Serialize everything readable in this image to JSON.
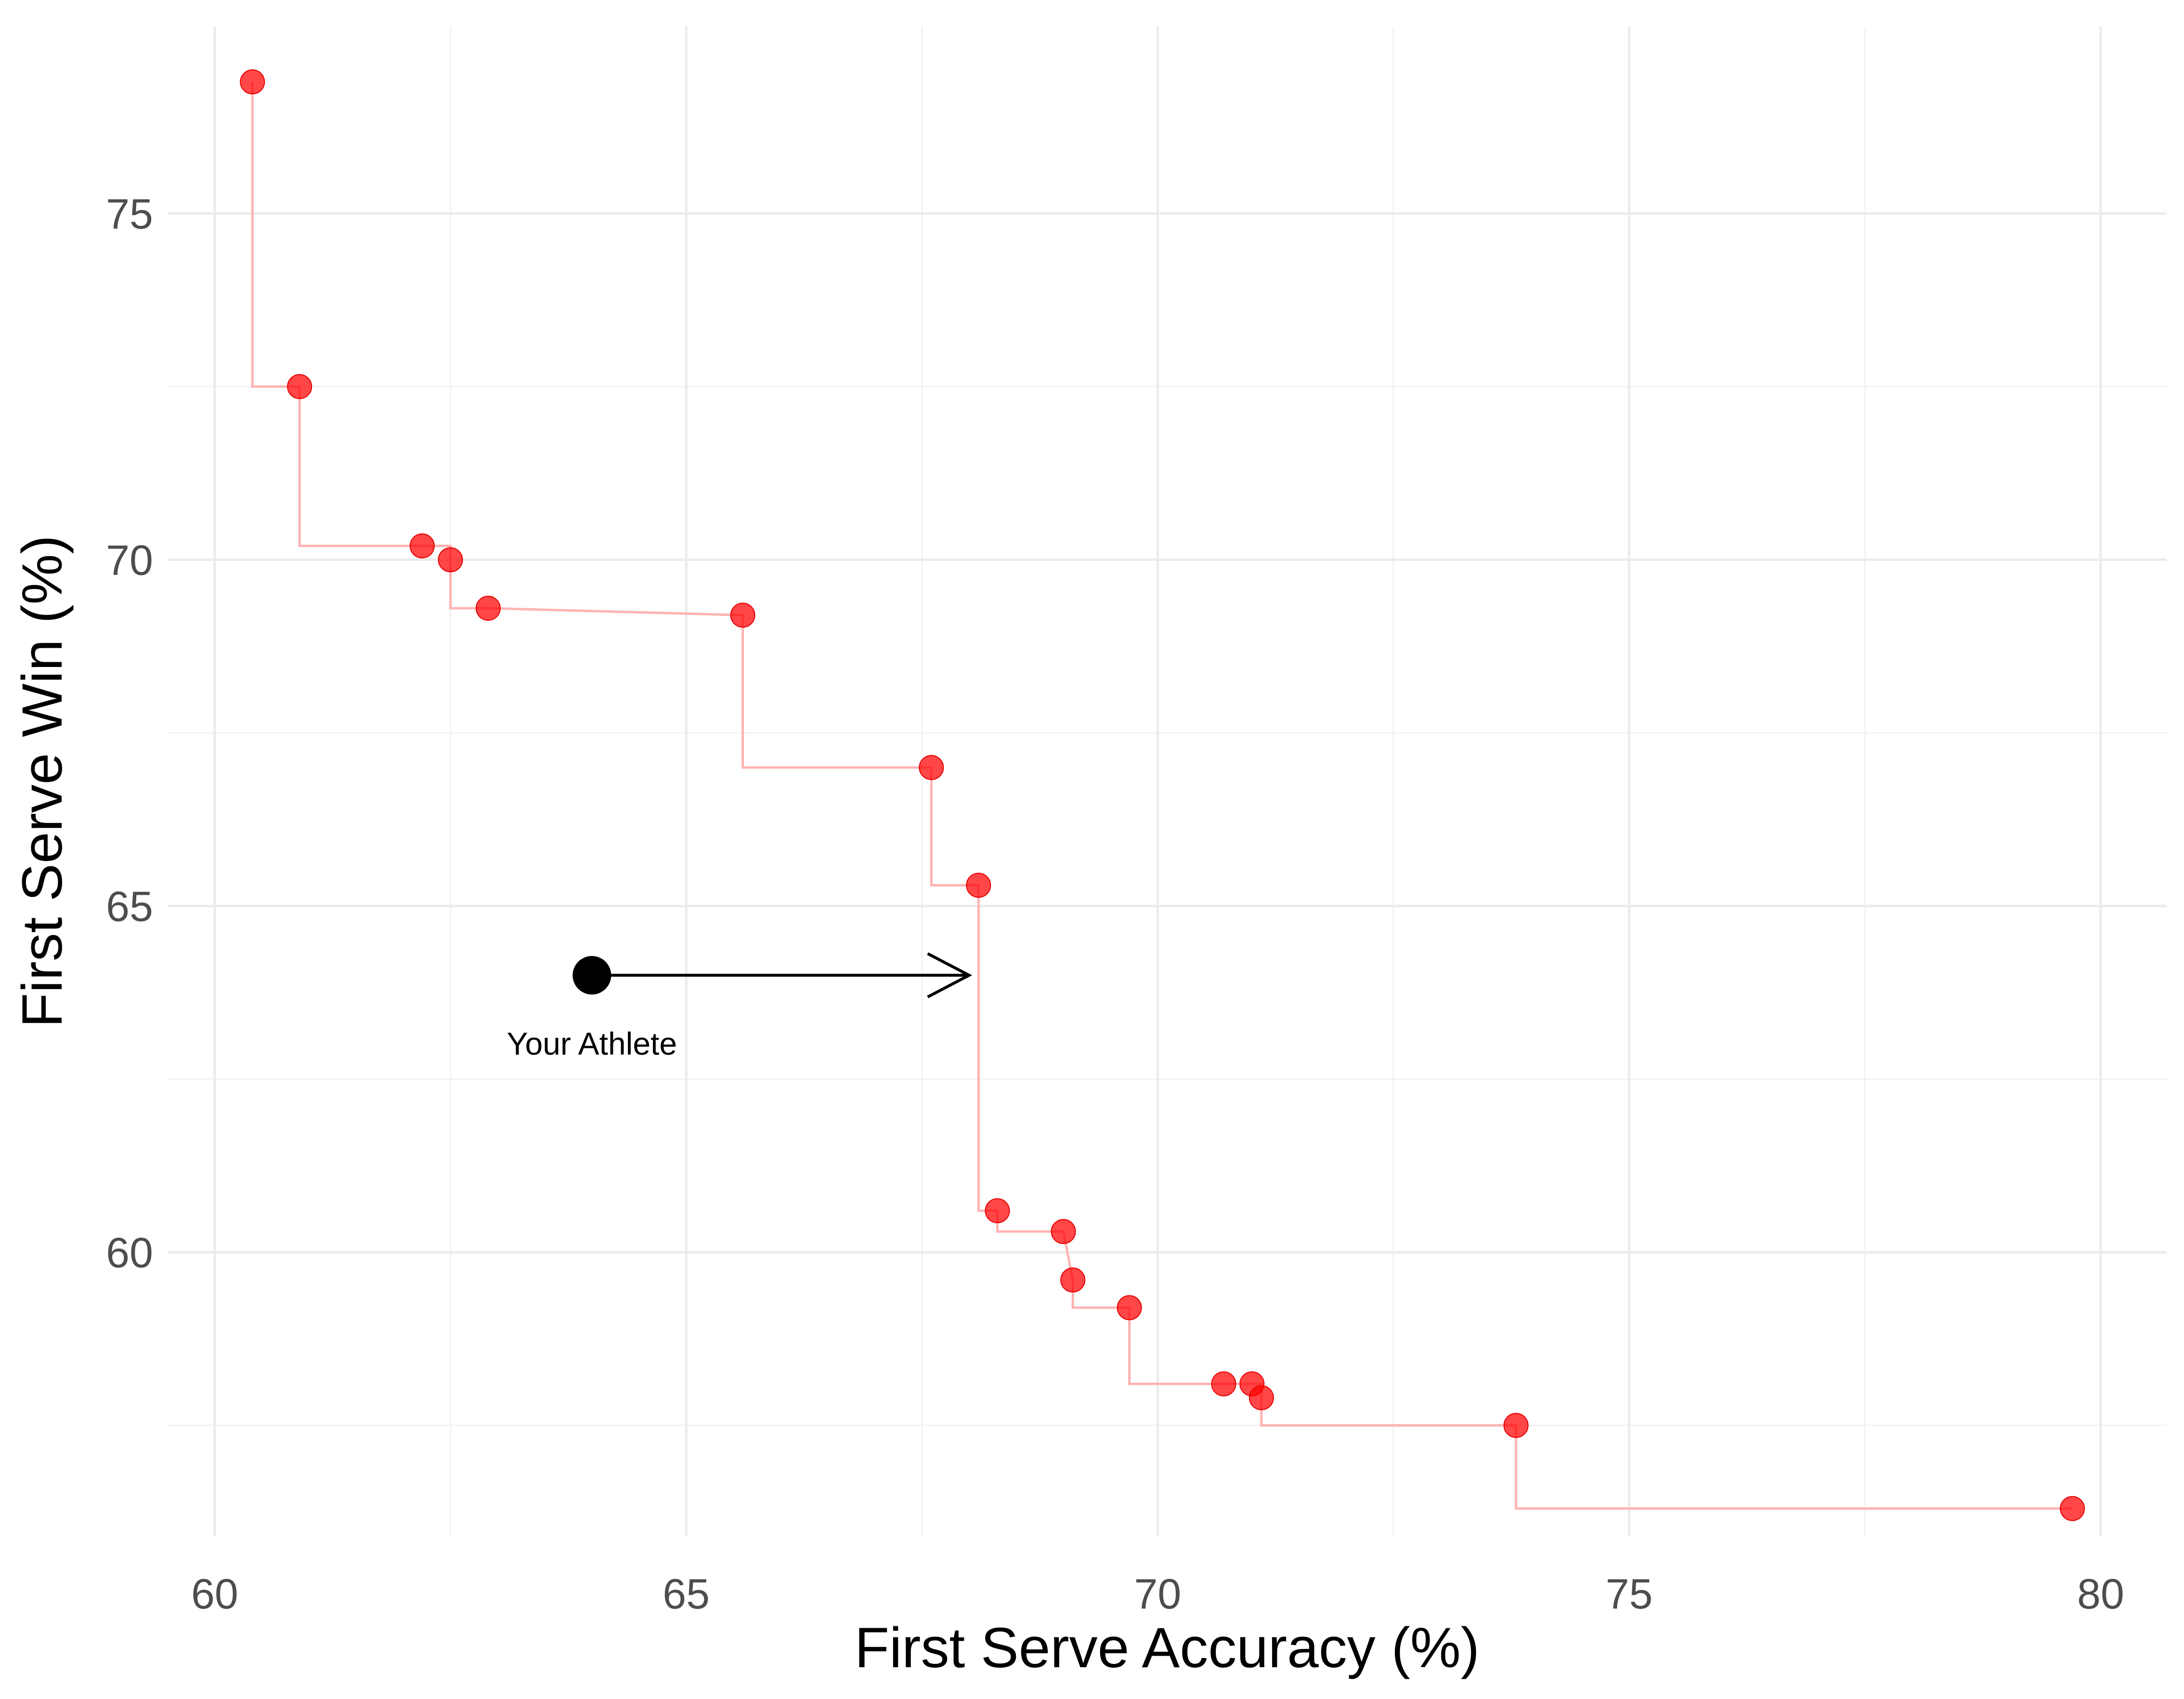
{
  "chart_data": {
    "type": "scatter",
    "xlabel": "First Serve Accuracy (%)",
    "ylabel": "First Serve Win (%)",
    "xlim": [
      59.5,
      80.7
    ],
    "ylim": [
      55.9,
      77.7
    ],
    "x_major_ticks": [
      60,
      65,
      70,
      75,
      80
    ],
    "y_major_ticks": [
      60,
      65,
      70,
      75
    ],
    "x_tick_labels": [
      "60",
      "65",
      "70",
      "75",
      "80"
    ],
    "y_tick_labels": [
      "60",
      "65",
      "70",
      "75"
    ],
    "x_minor_ticks": [
      62.5,
      67.5,
      72.5,
      77.5
    ],
    "y_minor_ticks": [
      57.5,
      62.5,
      67.5,
      72.5
    ],
    "grid": true,
    "legend": "none",
    "colors": {
      "points": "#ff0000",
      "frontier_line": "#ffb3b3",
      "athlete": "#000000",
      "grid": "#ebebeb"
    },
    "points": [
      {
        "x": 60.4,
        "y": 76.9
      },
      {
        "x": 60.9,
        "y": 72.5
      },
      {
        "x": 62.2,
        "y": 70.2
      },
      {
        "x": 62.5,
        "y": 70.0
      },
      {
        "x": 62.9,
        "y": 69.3
      },
      {
        "x": 65.6,
        "y": 69.2
      },
      {
        "x": 67.6,
        "y": 67.0
      },
      {
        "x": 68.1,
        "y": 65.3
      },
      {
        "x": 68.3,
        "y": 60.6
      },
      {
        "x": 69.0,
        "y": 60.3
      },
      {
        "x": 69.1,
        "y": 59.6
      },
      {
        "x": 69.7,
        "y": 59.2
      },
      {
        "x": 70.7,
        "y": 58.1
      },
      {
        "x": 71.0,
        "y": 58.1
      },
      {
        "x": 71.1,
        "y": 57.9
      },
      {
        "x": 73.8,
        "y": 57.5
      },
      {
        "x": 79.7,
        "y": 56.3
      }
    ],
    "frontier_step_line": [
      [
        60.4,
        76.9
      ],
      [
        60.4,
        72.5
      ],
      [
        60.9,
        72.5
      ],
      [
        60.9,
        70.2
      ],
      [
        62.2,
        70.2
      ],
      [
        62.5,
        70.2
      ],
      [
        62.5,
        69.3
      ],
      [
        62.9,
        69.3
      ],
      [
        65.6,
        69.2
      ],
      [
        65.6,
        67.0
      ],
      [
        67.6,
        67.0
      ],
      [
        67.6,
        65.3
      ],
      [
        68.1,
        65.3
      ],
      [
        68.1,
        60.6
      ],
      [
        68.3,
        60.6
      ],
      [
        68.3,
        60.3
      ],
      [
        69.0,
        60.3
      ],
      [
        69.1,
        59.6
      ],
      [
        69.1,
        59.2
      ],
      [
        69.7,
        59.2
      ],
      [
        69.7,
        58.1
      ],
      [
        70.7,
        58.1
      ],
      [
        71.0,
        58.1
      ],
      [
        71.1,
        58.1
      ],
      [
        71.1,
        57.5
      ],
      [
        73.8,
        57.5
      ],
      [
        73.8,
        56.3
      ],
      [
        79.7,
        56.3
      ]
    ],
    "athlete": {
      "label": "Your Athlete",
      "x": 64.0,
      "y": 64.0
    },
    "arrow": {
      "from": [
        64.0,
        64.0
      ],
      "to": [
        68.0,
        64.0
      ]
    }
  }
}
